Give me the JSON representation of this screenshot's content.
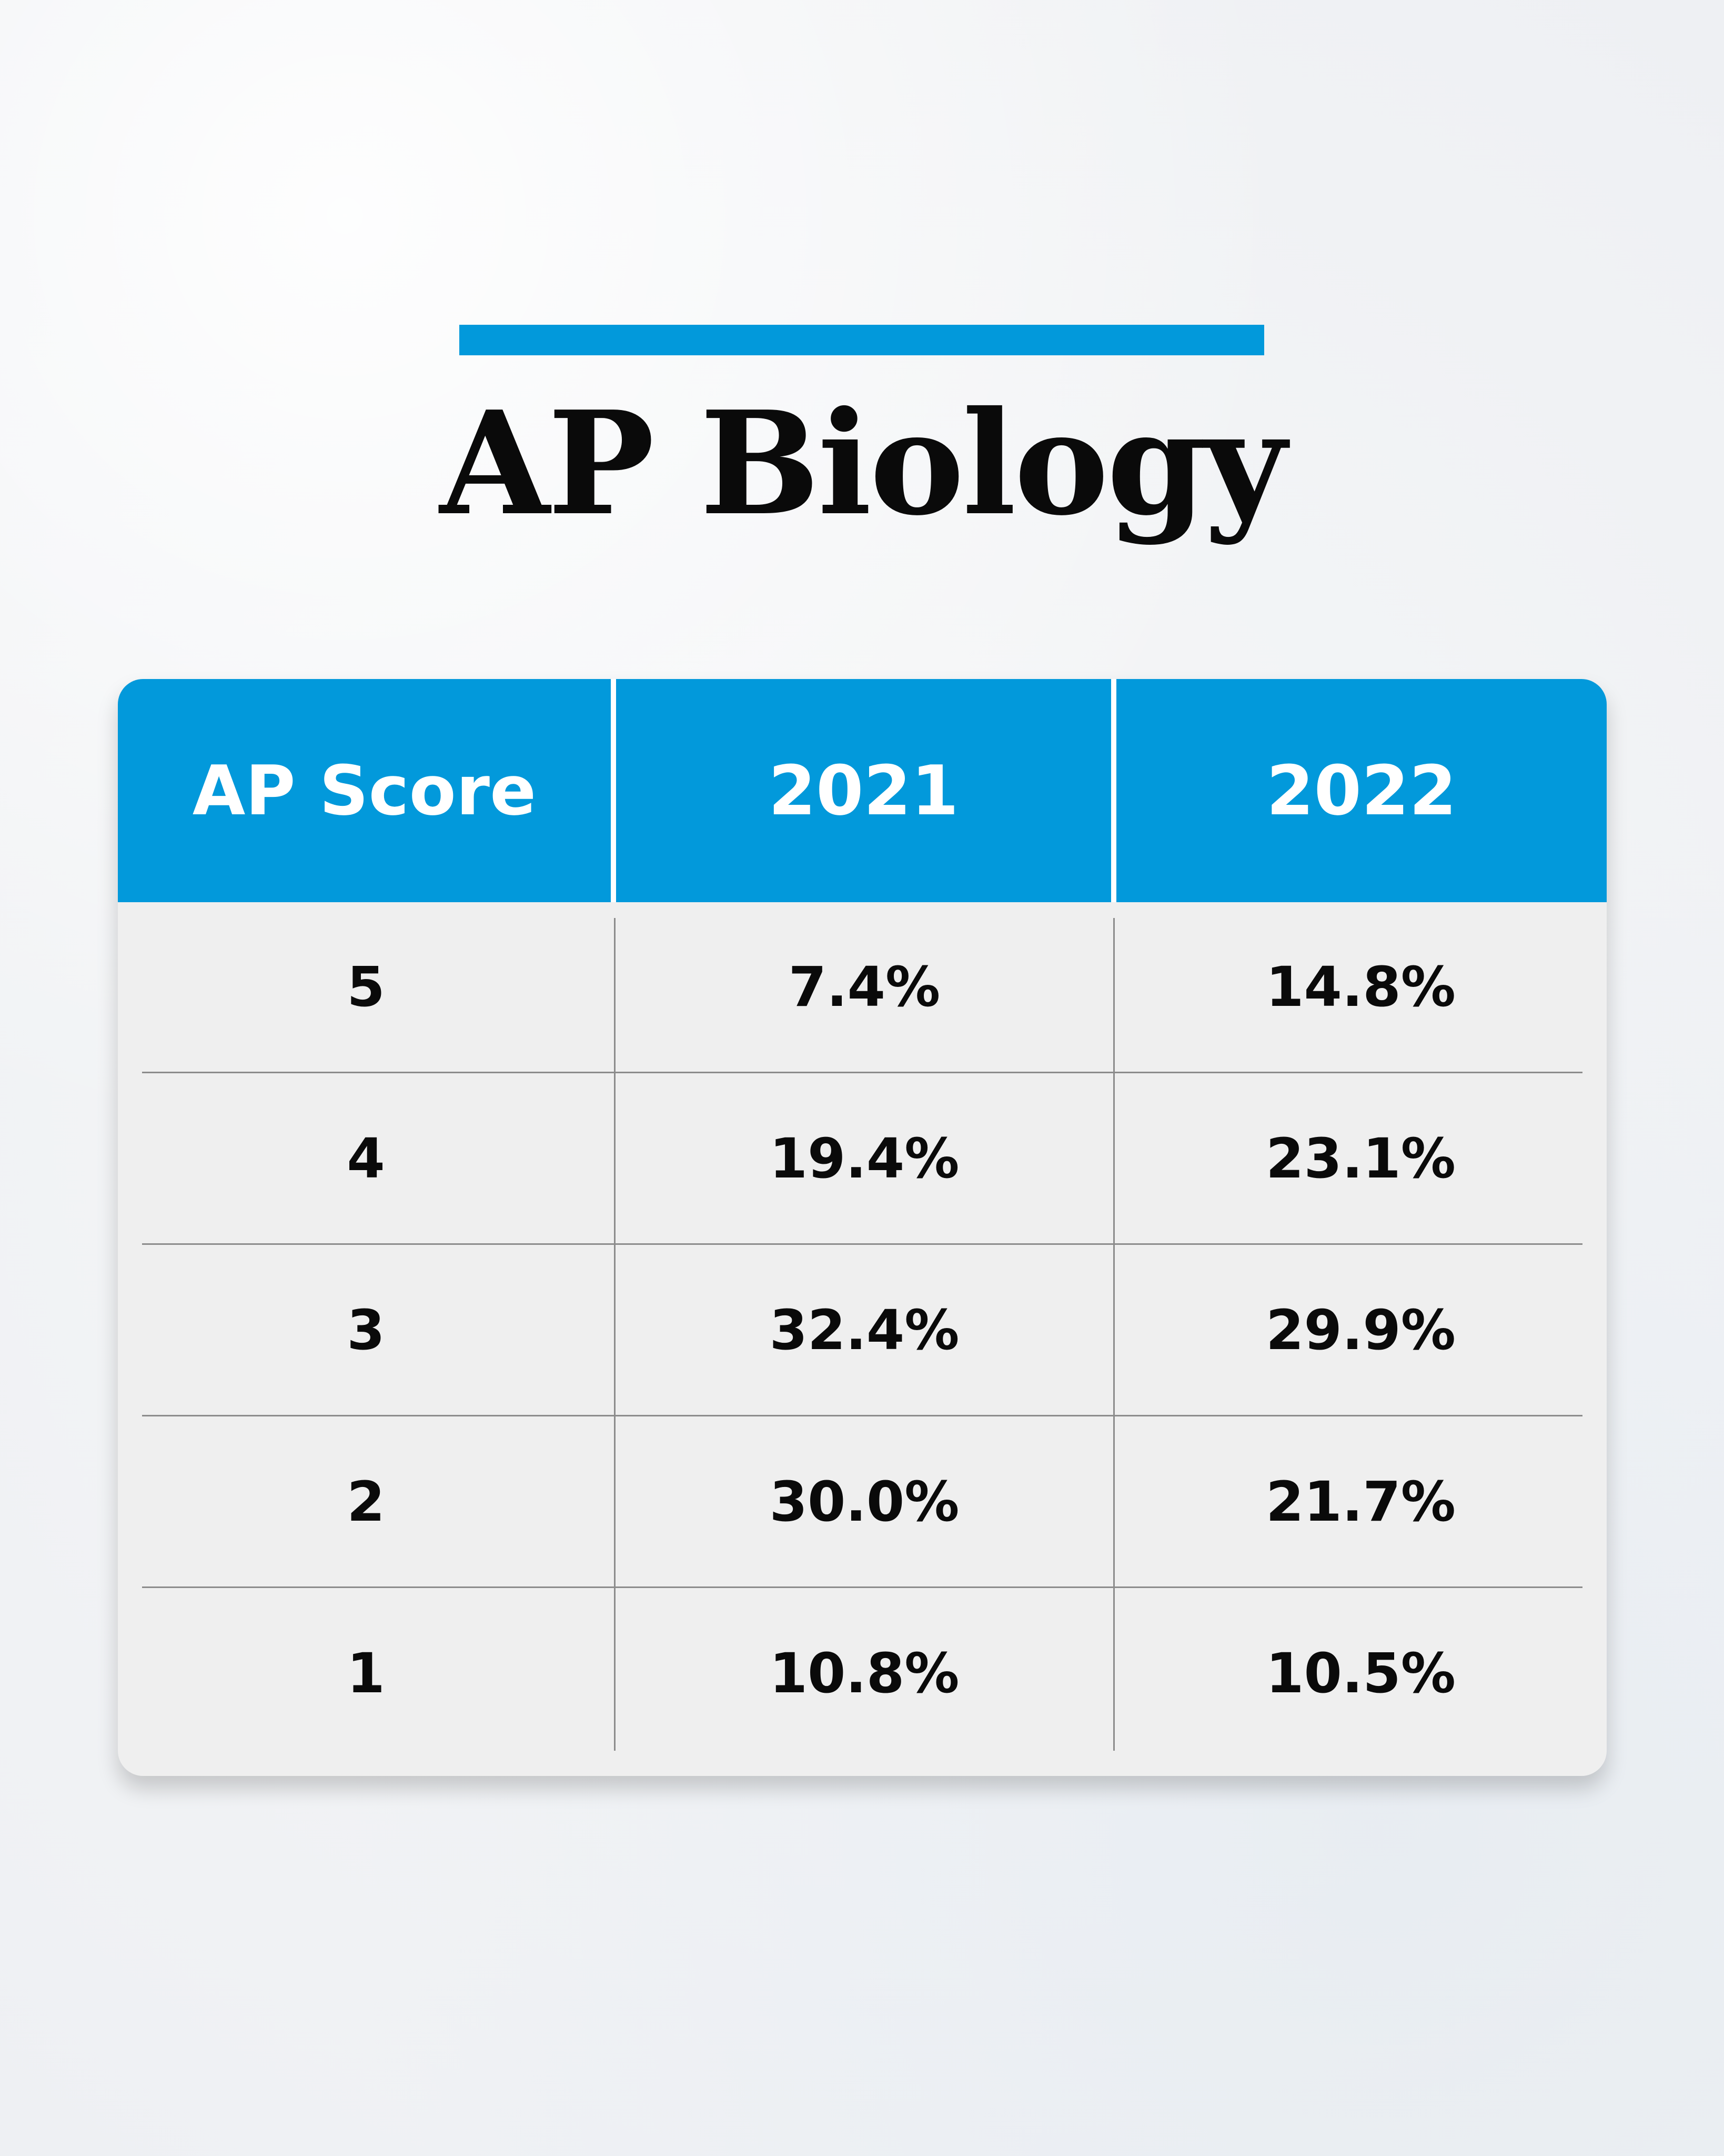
{
  "title": "AP Biology",
  "colors": {
    "accent": "#0299db",
    "header_text": "#ffffff",
    "body_bg": "#efefef",
    "text": "#0a0a0a"
  },
  "chart_data": {
    "type": "table",
    "title": "AP Biology",
    "columns": [
      "AP Score",
      "2021",
      "2022"
    ],
    "rows": [
      [
        "5",
        "7.4%",
        "14.8%"
      ],
      [
        "4",
        "19.4%",
        "23.1%"
      ],
      [
        "3",
        "32.4%",
        "29.9%"
      ],
      [
        "2",
        "30.0%",
        "21.7%"
      ],
      [
        "1",
        "10.8%",
        "10.5%"
      ]
    ]
  }
}
